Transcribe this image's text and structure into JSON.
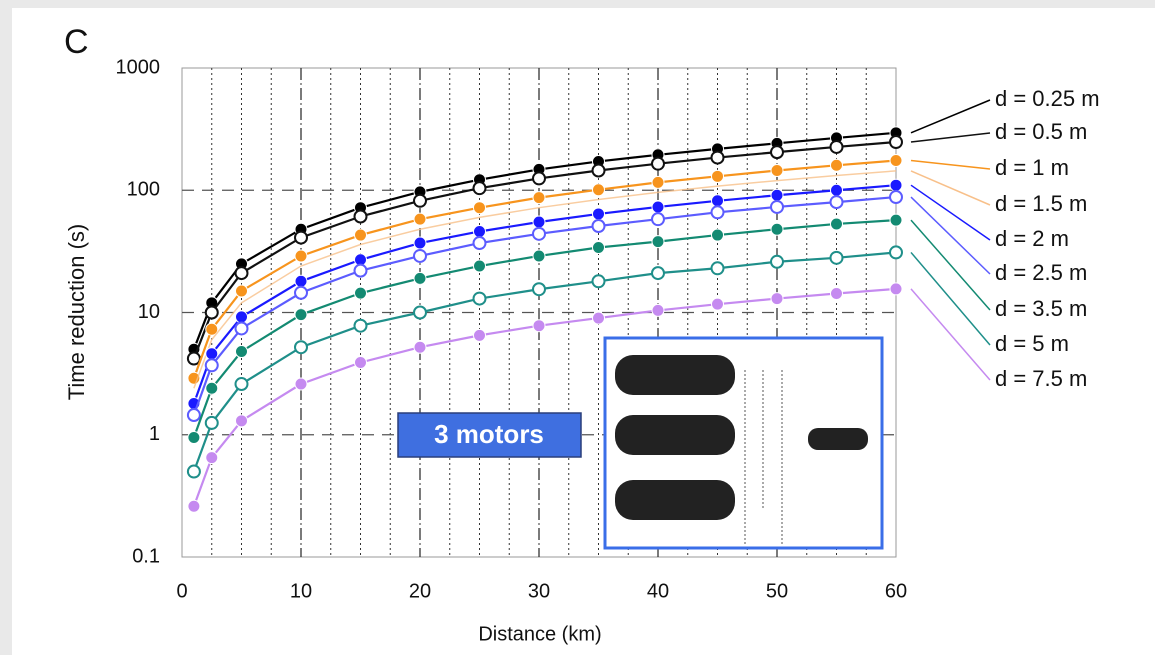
{
  "chart_data": {
    "type": "line",
    "panel_label": "C",
    "x_label": "Distance (km)",
    "y_label": "Time reduction (s)",
    "annotation": "3 motors",
    "x": [
      1,
      2.5,
      5,
      10,
      15,
      20,
      25,
      30,
      35,
      40,
      45,
      50,
      55,
      60
    ],
    "xlim": [
      0,
      60
    ],
    "xticks": [
      0,
      10,
      20,
      30,
      40,
      50,
      60
    ],
    "ylim": [
      0.1,
      1000
    ],
    "yticks": [
      0.1,
      1,
      10,
      100,
      1000
    ],
    "log_y": true,
    "grid": true,
    "legend": "right",
    "series": [
      {
        "name": "d = 0.25 m",
        "color": "#000000",
        "marker": "filled",
        "values": [
          5,
          12,
          25,
          48,
          72,
          97,
          122,
          148,
          172,
          195,
          218,
          242,
          268,
          295
        ]
      },
      {
        "name": "d = 0.5 m",
        "color": "#111111",
        "marker": "open",
        "values": [
          4.2,
          10,
          21,
          41,
          61,
          82,
          104,
          125,
          145,
          165,
          185,
          205,
          226,
          248
        ]
      },
      {
        "name": "d = 1 m",
        "color": "#f7941d",
        "marker": "filled",
        "values": [
          2.9,
          7.3,
          15,
          29,
          43,
          58,
          72,
          87,
          101,
          116,
          130,
          145,
          160,
          175
        ]
      },
      {
        "name": "d = 1.5 m",
        "color": "#f8c08a",
        "marker": "none",
        "values": [
          2.4,
          6,
          12,
          24,
          36,
          48,
          60,
          72,
          84,
          96,
          108,
          120,
          132,
          144
        ]
      },
      {
        "name": "d = 2 m",
        "color": "#1a1aff",
        "marker": "filled",
        "values": [
          1.8,
          4.6,
          9.2,
          18,
          27,
          37,
          46,
          55,
          64,
          73,
          82,
          91,
          100,
          110
        ]
      },
      {
        "name": "d = 2.5 m",
        "color": "#5c5cff",
        "marker": "open",
        "values": [
          1.45,
          3.7,
          7.4,
          14.5,
          22,
          29,
          37,
          44,
          51,
          58,
          66,
          73,
          80,
          88
        ]
      },
      {
        "name": "d = 3.5 m",
        "color": "#138a72",
        "marker": "filled",
        "values": [
          0.95,
          2.4,
          4.8,
          9.6,
          14.4,
          19,
          24,
          29,
          34,
          38,
          43,
          48,
          53,
          57
        ]
      },
      {
        "name": "d = 5 m",
        "color": "#1f8f8a",
        "marker": "open",
        "values": [
          0.5,
          1.25,
          2.6,
          5.2,
          7.8,
          10,
          13,
          15.5,
          18,
          21,
          23,
          26,
          28,
          31
        ]
      },
      {
        "name": "d = 7.5 m",
        "color": "#c58af0",
        "marker": "filled",
        "values": [
          0.26,
          0.65,
          1.3,
          2.6,
          3.9,
          5.2,
          6.5,
          7.8,
          9,
          10.4,
          11.7,
          13,
          14.3,
          15.6
        ]
      }
    ]
  }
}
